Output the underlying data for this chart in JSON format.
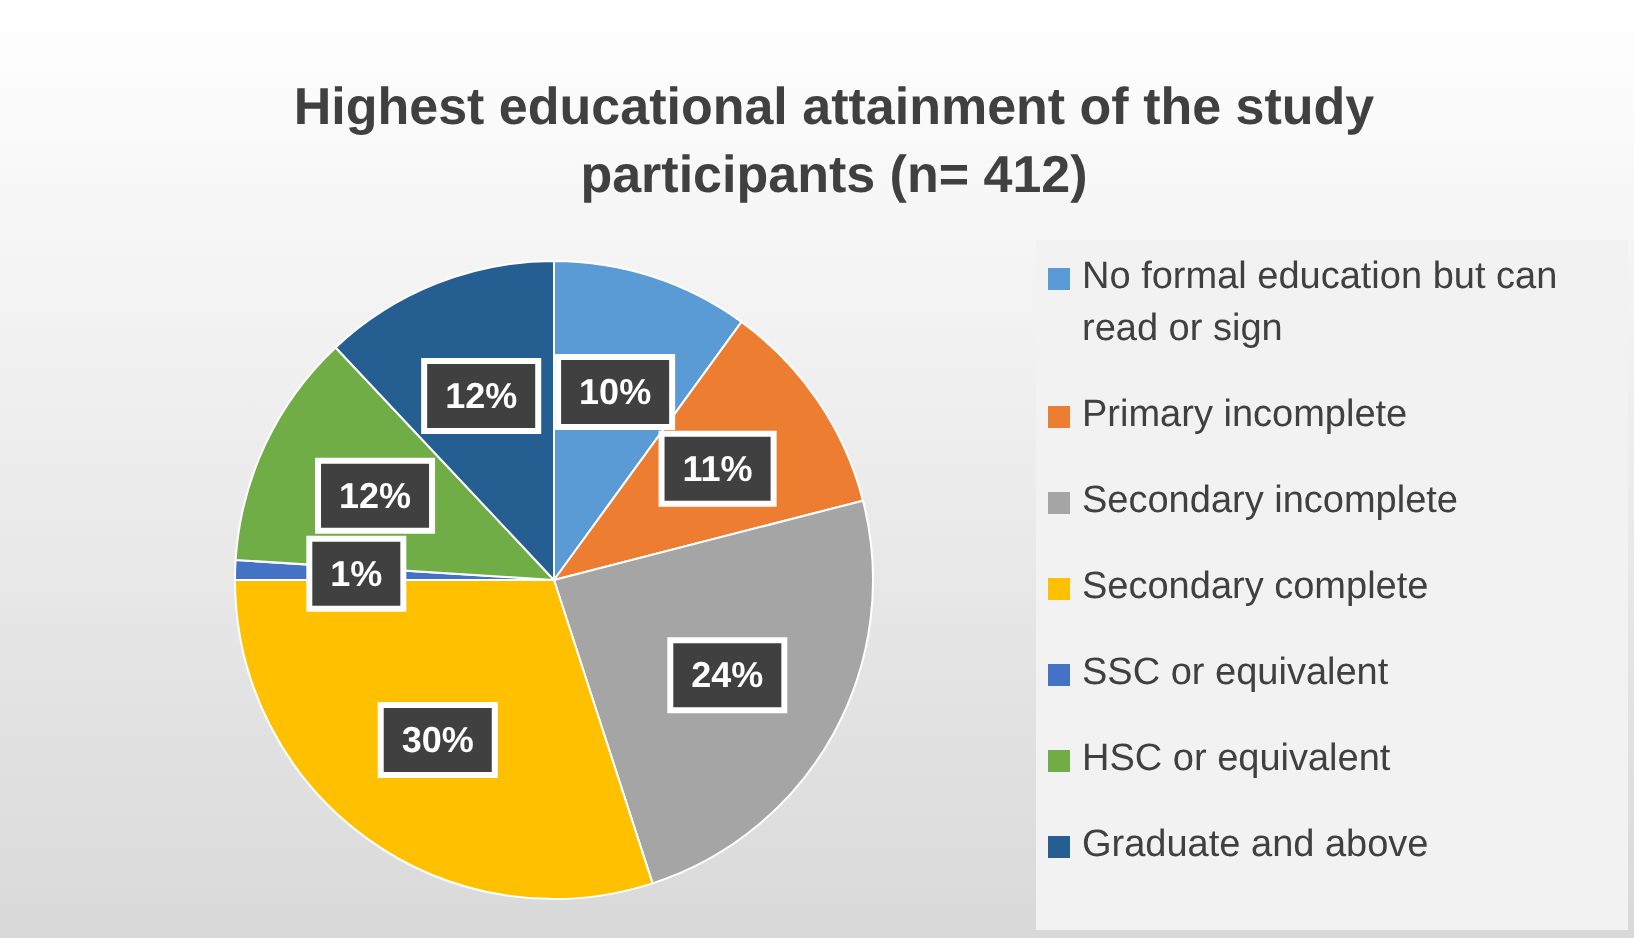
{
  "chart_data": {
    "type": "pie",
    "title": "Highest educational attainment of the study participants (n= 412)",
    "categories": [
      "No formal education but can read or sign",
      "Primary incomplete",
      "Secondary incomplete",
      "Secondary complete",
      "SSC or equivalent",
      "HSC or equivalent",
      "Graduate and above"
    ],
    "values": [
      10,
      11,
      24,
      30,
      1,
      12,
      12
    ],
    "colors": [
      "#5b9bd5",
      "#ed7d31",
      "#a5a5a5",
      "#ffc000",
      "#4472c4",
      "#70ad47",
      "#255e91"
    ],
    "value_labels": [
      "10%",
      "11%",
      "24%",
      "30%",
      "1%",
      "12%",
      "12%"
    ],
    "legend": "right"
  }
}
